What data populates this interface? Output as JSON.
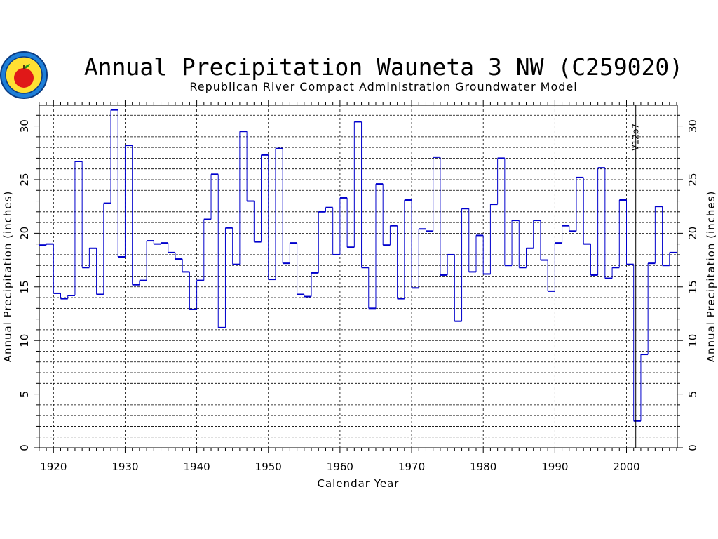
{
  "chart_data": {
    "type": "line",
    "step": true,
    "title": "Annual Precipitation Wauneta 3 NW (C259020)",
    "subtitle": "Republican River Compact Administration Groundwater Model",
    "xlabel": "Calendar Year",
    "ylabel": "Annual Precipitation (inches)",
    "xlim": [
      1918,
      2007
    ],
    "ylim": [
      0,
      32
    ],
    "x_ticks": [
      1920,
      1930,
      1940,
      1950,
      1960,
      1970,
      1980,
      1990,
      2000
    ],
    "y_ticks": [
      0,
      5,
      10,
      15,
      20,
      25,
      30
    ],
    "grid": true,
    "annotation": {
      "text": "V12p7",
      "x": 2001
    },
    "series": [
      {
        "name": "Annual Precipitation",
        "color": "#0000cc",
        "x": [
          1918,
          1919,
          1920,
          1921,
          1922,
          1923,
          1924,
          1925,
          1926,
          1927,
          1928,
          1929,
          1930,
          1931,
          1932,
          1933,
          1934,
          1935,
          1936,
          1937,
          1938,
          1939,
          1940,
          1941,
          1942,
          1943,
          1944,
          1945,
          1946,
          1947,
          1948,
          1949,
          1950,
          1951,
          1952,
          1953,
          1954,
          1955,
          1956,
          1957,
          1958,
          1959,
          1960,
          1961,
          1962,
          1963,
          1964,
          1965,
          1966,
          1967,
          1968,
          1969,
          1970,
          1971,
          1972,
          1973,
          1974,
          1975,
          1976,
          1977,
          1978,
          1979,
          1980,
          1981,
          1982,
          1983,
          1984,
          1985,
          1986,
          1987,
          1988,
          1989,
          1990,
          1991,
          1992,
          1993,
          1994,
          1995,
          1996,
          1997,
          1998,
          1999,
          2000,
          2001,
          2002,
          2003,
          2004,
          2005,
          2006
        ],
        "values": [
          18.9,
          19.0,
          14.4,
          13.9,
          14.2,
          26.7,
          16.8,
          18.6,
          14.3,
          22.8,
          31.5,
          17.8,
          28.2,
          15.2,
          15.6,
          19.3,
          19.0,
          19.1,
          18.2,
          17.6,
          16.4,
          12.9,
          15.6,
          21.3,
          25.5,
          11.2,
          20.5,
          17.1,
          29.5,
          23.0,
          19.2,
          27.3,
          15.7,
          27.9,
          17.2,
          19.1,
          14.3,
          14.1,
          16.3,
          22.0,
          22.4,
          18.0,
          23.3,
          18.7,
          30.4,
          16.8,
          13.0,
          24.6,
          18.9,
          20.7,
          13.9,
          23.1,
          14.9,
          20.4,
          20.2,
          27.1,
          16.1,
          18.0,
          11.8,
          22.3,
          16.4,
          19.8,
          16.2,
          22.7,
          27.0,
          17.0,
          21.2,
          16.8,
          18.6,
          21.2,
          17.5,
          14.6,
          19.1,
          20.7,
          20.2,
          25.2,
          19.0,
          16.1,
          26.1,
          15.8,
          16.8,
          23.1,
          17.1,
          2.5,
          8.7,
          17.2,
          22.5,
          17.0,
          18.2
        ]
      }
    ]
  }
}
